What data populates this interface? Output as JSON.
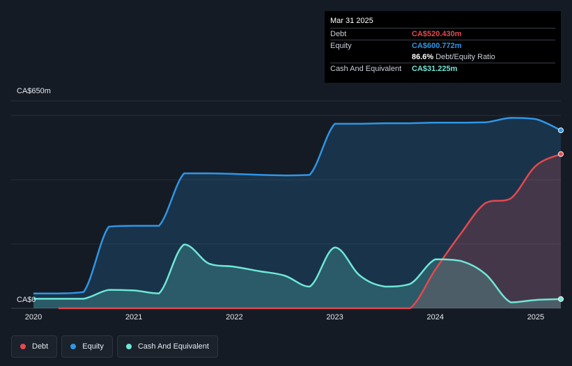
{
  "tooltip": {
    "date": "Mar 31 2025",
    "rows": [
      {
        "label": "Debt",
        "value": "CA$520.430m",
        "color": "#e5484d"
      },
      {
        "label": "Equity",
        "value": "CA$600.772m",
        "color": "#2f96e6"
      }
    ],
    "ratio_value": "86.6%",
    "ratio_text": "Debt/Equity Ratio",
    "cash": {
      "label": "Cash And Equivalent",
      "value": "CA$31.225m",
      "color": "#6ee7d6"
    }
  },
  "legend": [
    {
      "label": "Debt",
      "color": "#e5484d"
    },
    {
      "label": "Equity",
      "color": "#2f96e6"
    },
    {
      "label": "Cash And Equivalent",
      "color": "#6ee7d6"
    }
  ],
  "chart_data": {
    "type": "area",
    "ylabel_top": "CA$650m",
    "ylabel_bottom": "CA$0",
    "ylim": [
      0,
      650
    ],
    "xlim": [
      2020.0,
      2025.25
    ],
    "x_ticks": [
      "2020",
      "2021",
      "2022",
      "2023",
      "2024",
      "2025"
    ],
    "grid": true,
    "series": [
      {
        "name": "Debt",
        "color": "#e5484d",
        "x": [
          2020.25,
          2020.75,
          2021.25,
          2021.75,
          2022.25,
          2022.75,
          2023.25,
          2023.5,
          2023.75,
          2024.0,
          2024.25,
          2024.5,
          2024.75,
          2025.0,
          2025.25
        ],
        "values": [
          0,
          0,
          0,
          0,
          0,
          0,
          0,
          0,
          0,
          130,
          250,
          355,
          370,
          480,
          520
        ]
      },
      {
        "name": "Equity",
        "color": "#2f96e6",
        "x": [
          2020.0,
          2020.25,
          2020.5,
          2020.75,
          2021.0,
          2021.25,
          2021.5,
          2021.75,
          2022.0,
          2022.25,
          2022.5,
          2022.75,
          2023.0,
          2023.25,
          2023.5,
          2023.75,
          2024.0,
          2024.25,
          2024.5,
          2024.75,
          2025.0,
          2025.25
        ],
        "values": [
          50,
          50,
          55,
          275,
          278,
          278,
          455,
          455,
          453,
          450,
          448,
          450,
          622,
          622,
          624,
          624,
          626,
          626,
          627,
          642,
          638,
          600
        ]
      },
      {
        "name": "Cash And Equivalent",
        "color": "#6ee7d6",
        "x": [
          2020.0,
          2020.25,
          2020.5,
          2020.75,
          2021.0,
          2021.25,
          2021.5,
          2021.75,
          2022.0,
          2022.25,
          2022.5,
          2022.75,
          2023.0,
          2023.25,
          2023.5,
          2023.75,
          2024.0,
          2024.25,
          2024.5,
          2024.75,
          2025.0,
          2025.25
        ],
        "values": [
          32,
          32,
          32,
          62,
          60,
          50,
          215,
          150,
          140,
          125,
          110,
          73,
          205,
          110,
          73,
          82,
          165,
          160,
          115,
          20,
          28,
          31
        ]
      }
    ]
  }
}
